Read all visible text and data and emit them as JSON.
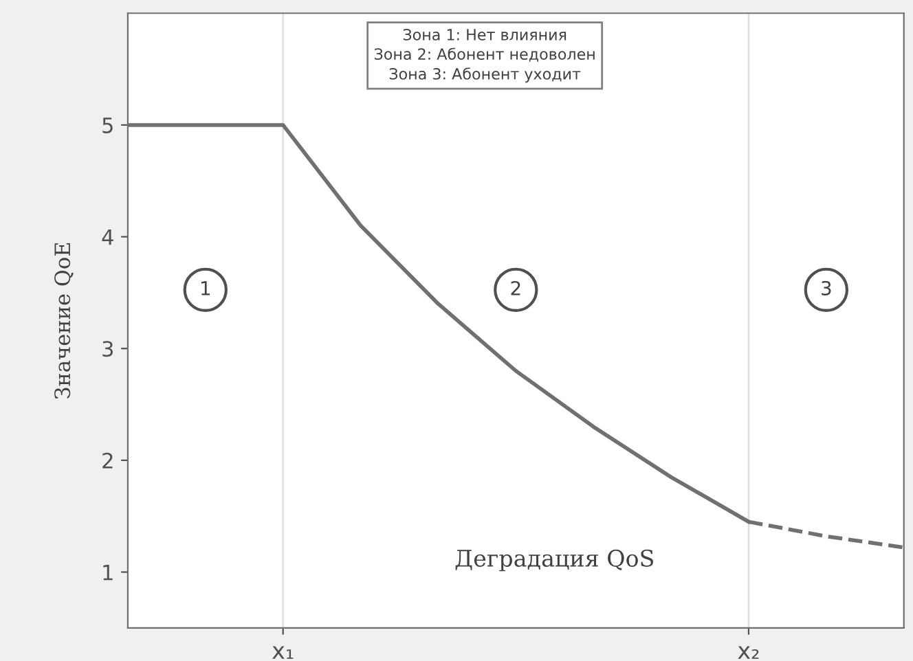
{
  "chart_data": {
    "type": "line",
    "xlabel": "Деградация QoS",
    "ylabel": "Значение QoE",
    "categories": [
      null,
      null,
      "x₁",
      null,
      null,
      null,
      null,
      null,
      "x₂",
      null,
      null
    ],
    "ylim": [
      0.5,
      6
    ],
    "yticks": [
      1,
      2,
      3,
      4,
      5
    ],
    "grid": false,
    "marker": "none",
    "series": [
      {
        "color": "#707070",
        "line_style": "solid",
        "values": [
          5,
          5,
          5,
          4.1,
          3.4,
          2.8,
          2.3,
          1.85,
          1.45,
          null,
          null
        ]
      },
      {
        "color": "#707070",
        "line_style": "dashed",
        "values": [
          null,
          null,
          null,
          null,
          null,
          null,
          null,
          null,
          1.45,
          1.32,
          1.22
        ]
      }
    ],
    "ref_lines": [
      {
        "axis": "x",
        "value": "x₁",
        "color": "#e0e0e0"
      },
      {
        "axis": "x",
        "value": "x₂",
        "color": "#e0e0e0"
      }
    ],
    "annotations": [
      "Зона 1: Нет влияния",
      "Зона 2: Абонент недоволен",
      "Зона 3: Абонент уходит",
      "1",
      "2",
      "3"
    ]
  }
}
